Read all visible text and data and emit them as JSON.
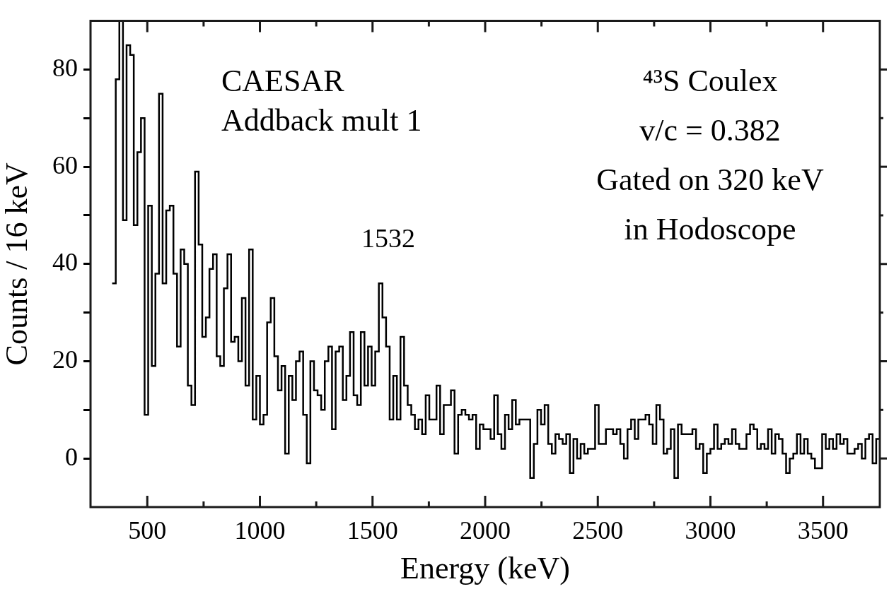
{
  "chart_data": {
    "type": "histogram",
    "xlabel": "Energy (keV)",
    "ylabel": "Counts / 16 keV",
    "color": "#000000",
    "xlim": [
      248,
      3752
    ],
    "ylim": [
      -10,
      90
    ],
    "xticks": [
      500,
      {
        "value": 750,
        "label": null
      },
      1000,
      {
        "value": 1250,
        "label": null
      },
      1500,
      {
        "value": 1750,
        "label": null
      },
      2000,
      {
        "value": 2250,
        "label": null
      },
      2500,
      {
        "value": 2750,
        "label": null
      },
      3000,
      {
        "value": 3250,
        "label": null
      },
      3500
    ],
    "yticks": [
      0,
      {
        "value": 10,
        "label": null
      },
      20,
      {
        "value": 30,
        "label": null
      },
      40,
      {
        "value": 50,
        "label": null
      },
      60,
      {
        "value": 70,
        "label": null
      },
      80
    ],
    "annotations": [
      "CAESAR",
      "Addback mult 1",
      "⁴³S Coulex",
      "v/c = 0.382",
      "Gated on 320 keV",
      "in Hodoscope",
      "1532"
    ],
    "bins": [
      344,
      360,
      376,
      392,
      408,
      424,
      440,
      456,
      472,
      488,
      504,
      520,
      536,
      552,
      568,
      584,
      600,
      616,
      632,
      648,
      664,
      680,
      696,
      712,
      728,
      744,
      760,
      776,
      792,
      808,
      824,
      840,
      856,
      872,
      888,
      904,
      920,
      936,
      952,
      968,
      984,
      1000,
      1016,
      1032,
      1048,
      1064,
      1080,
      1096,
      1112,
      1128,
      1144,
      1160,
      1176,
      1192,
      1208,
      1224,
      1240,
      1256,
      1272,
      1288,
      1304,
      1320,
      1336,
      1352,
      1368,
      1384,
      1400,
      1416,
      1432,
      1448,
      1464,
      1480,
      1496,
      1512,
      1528,
      1544,
      1560,
      1576,
      1592,
      1608,
      1624,
      1640,
      1656,
      1672,
      1688,
      1704,
      1720,
      1736,
      1752,
      1768,
      1784,
      1800,
      1816,
      1832,
      1848,
      1864,
      1880,
      1896,
      1912,
      1928,
      1944,
      1960,
      1976,
      1992,
      2008,
      2024,
      2040,
      2056,
      2072,
      2088,
      2104,
      2120,
      2136,
      2152,
      2168,
      2184,
      2200,
      2216,
      2232,
      2248,
      2264,
      2280,
      2296,
      2312,
      2328,
      2344,
      2360,
      2376,
      2392,
      2408,
      2424,
      2440,
      2456,
      2472,
      2488,
      2504,
      2520,
      2536,
      2552,
      2568,
      2584,
      2600,
      2616,
      2632,
      2648,
      2664,
      2680,
      2696,
      2712,
      2728,
      2744,
      2760,
      2776,
      2792,
      2808,
      2824,
      2840,
      2856,
      2872,
      2888,
      2904,
      2920,
      2936,
      2952,
      2968,
      2984,
      3000,
      3016,
      3032,
      3048,
      3064,
      3080,
      3096,
      3112,
      3128,
      3144,
      3160,
      3176,
      3192,
      3208,
      3224,
      3240,
      3256,
      3272,
      3288,
      3304,
      3320,
      3336,
      3352,
      3368,
      3384,
      3400,
      3416,
      3432,
      3448,
      3464,
      3480,
      3496,
      3512,
      3528,
      3544,
      3560,
      3576,
      3592,
      3608,
      3624,
      3640,
      3656,
      3672,
      3688,
      3704,
      3720,
      3736,
      3752
    ],
    "values": [
      36,
      78,
      90,
      49,
      85,
      83,
      48,
      63,
      70,
      9,
      52,
      19,
      38,
      75,
      36,
      51,
      52,
      38,
      23,
      43,
      40,
      15,
      11,
      59,
      44,
      25,
      29,
      39,
      42,
      21,
      19,
      35,
      42,
      24,
      25,
      20,
      33,
      15,
      43,
      8,
      17,
      7,
      9,
      28,
      33,
      21,
      14,
      19,
      1,
      17,
      12,
      20,
      22,
      9,
      -1,
      20,
      14,
      13,
      10,
      20,
      23,
      6,
      22,
      23,
      12,
      17,
      26,
      13,
      11,
      26,
      15,
      23,
      15,
      22,
      36,
      29,
      23,
      8,
      17,
      8,
      25,
      15,
      11,
      9,
      6,
      8,
      5,
      13,
      8,
      8,
      15,
      5,
      11,
      11,
      14,
      1,
      9,
      10,
      9,
      8,
      9,
      2,
      7,
      6,
      6,
      4,
      13,
      5,
      2,
      9,
      6,
      12,
      7,
      8,
      8,
      8,
      -4,
      3,
      10,
      7,
      11,
      3,
      1,
      5,
      4,
      3,
      5,
      -3,
      4,
      0,
      3,
      1,
      2,
      2,
      11,
      3,
      3,
      6,
      6,
      5,
      6,
      3,
      0,
      6,
      8,
      4,
      8,
      8,
      9,
      7,
      3,
      11,
      8,
      1,
      2,
      6,
      -4,
      7,
      5,
      5,
      5,
      6,
      2,
      3,
      -3,
      1,
      2,
      7,
      2,
      3,
      4,
      3,
      6,
      3,
      2,
      2,
      5,
      7,
      6,
      2,
      3,
      2,
      6,
      1,
      5,
      4,
      1,
      -3,
      0,
      1,
      5,
      1,
      4,
      1,
      0,
      -2,
      -2,
      5,
      2,
      4,
      2,
      5,
      3,
      4,
      1,
      1,
      2,
      3,
      0,
      4,
      5,
      -1,
      4
    ]
  }
}
